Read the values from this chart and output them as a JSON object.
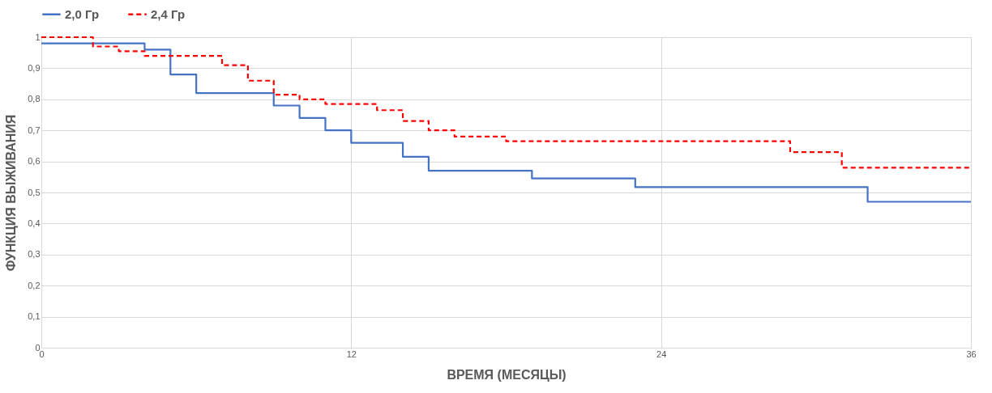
{
  "chart_data": {
    "type": "step",
    "xlabel": "ВРЕМЯ (МЕСЯЦЫ)",
    "ylabel": "ФУНКЦИЯ ВЫЖИВАНИЯ",
    "xlim": [
      0,
      36
    ],
    "xticks": [
      0,
      12,
      24,
      36
    ],
    "ylim": [
      0,
      1
    ],
    "yticks": [
      0,
      {
        "value": 0.1,
        "label": "0,1"
      },
      {
        "value": 0.2,
        "label": "0,2"
      },
      {
        "value": 0.3,
        "label": "0,3"
      },
      {
        "value": 0.4,
        "label": "0,4"
      },
      {
        "value": 0.5,
        "label": "0,5"
      },
      {
        "value": 0.6,
        "label": "0,6"
      },
      {
        "value": 0.7,
        "label": "0,7"
      },
      {
        "value": 0.8,
        "label": "0,8"
      },
      {
        "value": 0.9,
        "label": "0,9"
      },
      1
    ],
    "grid": true,
    "legend": "top",
    "marker": "none",
    "series": [
      {
        "name": "2,0 Гр",
        "color": "#4472c4",
        "line_style": "solid",
        "x": [
          0,
          4,
          5,
          6,
          9,
          10,
          11,
          12,
          14,
          15,
          19,
          23,
          32,
          36
        ],
        "values": [
          0.98,
          0.96,
          0.88,
          0.82,
          0.78,
          0.74,
          0.7,
          0.66,
          0.615,
          0.57,
          0.545,
          0.517,
          0.47,
          0.47
        ]
      },
      {
        "name": "2,4 Гр",
        "color": "#ff0000",
        "line_style": "dashed",
        "x": [
          0,
          2,
          3,
          4,
          7,
          8,
          9,
          10,
          11,
          13,
          14,
          15,
          16,
          18,
          29,
          31,
          36
        ],
        "values": [
          1.0,
          0.97,
          0.955,
          0.94,
          0.91,
          0.86,
          0.815,
          0.8,
          0.785,
          0.765,
          0.73,
          0.7,
          0.68,
          0.665,
          0.63,
          0.58,
          0.58
        ]
      }
    ]
  }
}
